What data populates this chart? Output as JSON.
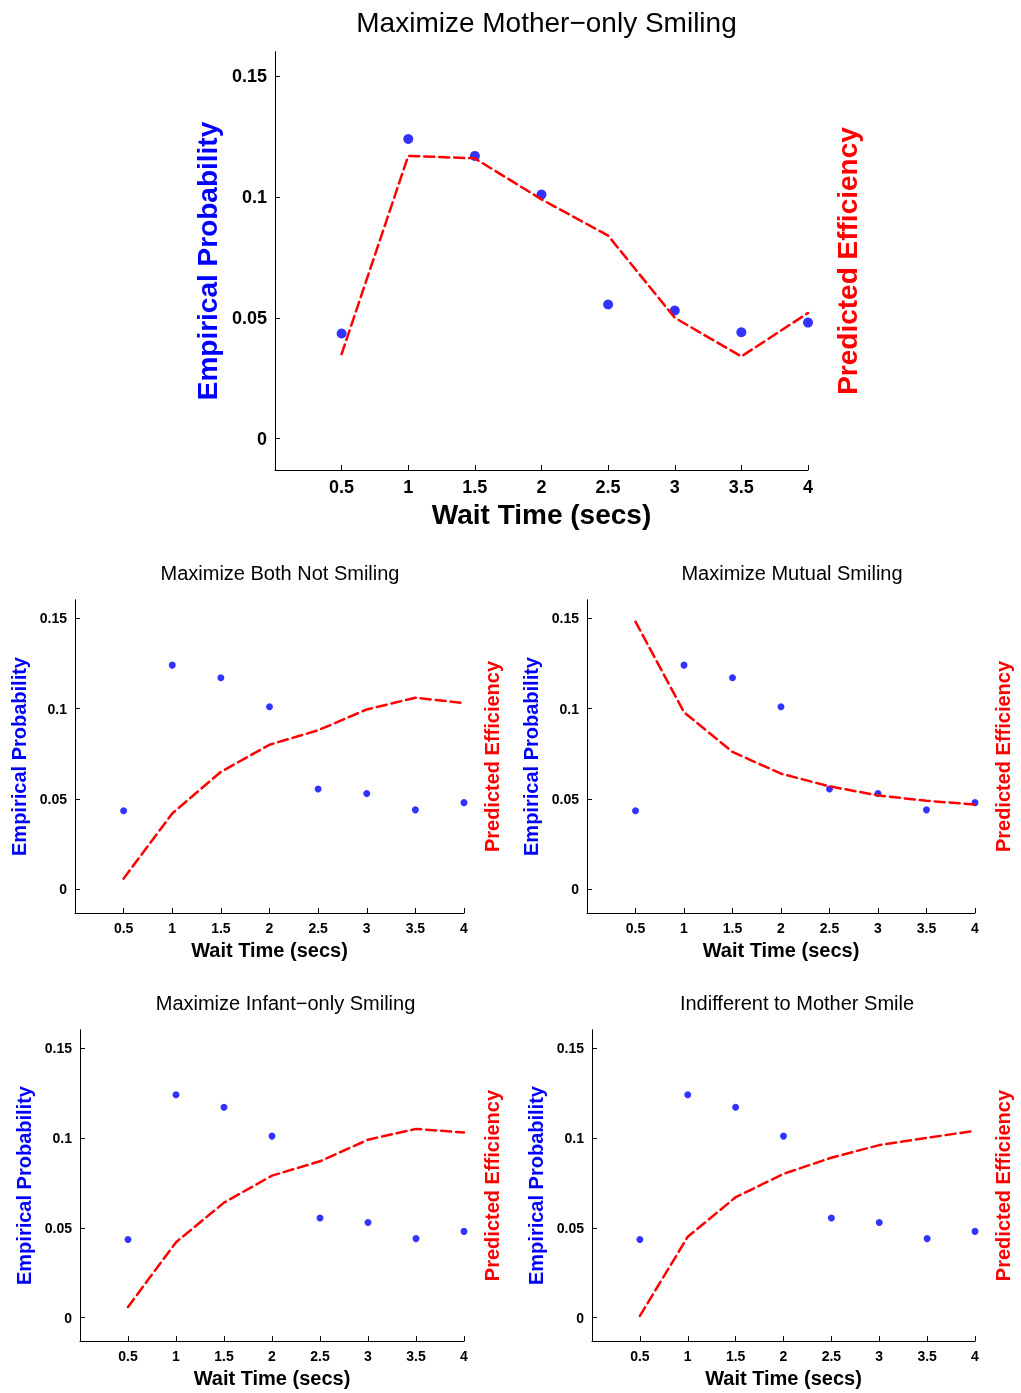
{
  "chart_data": [
    {
      "type": "scatter",
      "title": "Maximize Mother−only Smiling",
      "xlabel": "Wait Time (secs)",
      "ylabel": "Empirical Probability",
      "y2label": "Predicted Efficiency",
      "x": [
        0.5,
        1,
        1.5,
        2,
        2.5,
        3,
        3.5,
        4
      ],
      "xlim": [
        0,
        4
      ],
      "xticks": [
        0.5,
        1,
        1.5,
        2,
        2.5,
        3,
        3.5,
        4
      ],
      "ylim": [
        -0.013,
        0.16
      ],
      "yticks": [
        0,
        0.05,
        0.1,
        0.15
      ],
      "grid": false,
      "series": [
        {
          "type": "scatter",
          "color": "#0000ff",
          "marker": "circle",
          "values": [
            0.0435,
            0.124,
            0.117,
            0.101,
            0.0555,
            0.053,
            0.044,
            0.048
          ]
        },
        {
          "type": "line",
          "color": "#ff0000",
          "marker": "none",
          "line_style": "dashed",
          "values": [
            0.035,
            0.117,
            0.116,
            0.099,
            0.084,
            0.05,
            0.034,
            0.052
          ]
        }
      ]
    },
    {
      "type": "scatter",
      "title": "Maximize Both Not Smiling",
      "xlabel": "Wait Time (secs)",
      "ylabel": "Empirical Probability",
      "y2label": "Predicted Efficiency",
      "x": [
        0.5,
        1,
        1.5,
        2,
        2.5,
        3,
        3.5,
        4
      ],
      "xlim": [
        0,
        4
      ],
      "xticks": [
        0.5,
        1,
        1.5,
        2,
        2.5,
        3,
        3.5,
        4
      ],
      "ylim": [
        -0.013,
        0.16
      ],
      "yticks": [
        0,
        0.05,
        0.1,
        0.15
      ],
      "grid": false,
      "series": [
        {
          "type": "scatter",
          "color": "#0000ff",
          "marker": "circle",
          "values": [
            0.0435,
            0.124,
            0.117,
            0.101,
            0.0555,
            0.053,
            0.044,
            0.048
          ]
        },
        {
          "type": "line",
          "color": "#ff0000",
          "marker": "none",
          "line_style": "dashed",
          "values": [
            0.006,
            0.042,
            0.065,
            0.08,
            0.088,
            0.0995,
            0.106,
            0.103
          ]
        }
      ]
    },
    {
      "type": "scatter",
      "title": "Maximize Mutual Smiling",
      "xlabel": "Wait Time (secs)",
      "ylabel": "Empirical Probability",
      "y2label": "Predicted Efficiency",
      "x": [
        0.5,
        1,
        1.5,
        2,
        2.5,
        3,
        3.5,
        4
      ],
      "xlim": [
        0,
        4
      ],
      "xticks": [
        0.5,
        1,
        1.5,
        2,
        2.5,
        3,
        3.5,
        4
      ],
      "ylim": [
        -0.013,
        0.16
      ],
      "yticks": [
        0,
        0.05,
        0.1,
        0.15
      ],
      "grid": false,
      "series": [
        {
          "type": "scatter",
          "color": "#0000ff",
          "marker": "circle",
          "values": [
            0.0435,
            0.124,
            0.117,
            0.101,
            0.0555,
            0.053,
            0.044,
            0.048
          ]
        },
        {
          "type": "line",
          "color": "#ff0000",
          "marker": "none",
          "line_style": "dashed",
          "values": [
            0.148,
            0.098,
            0.076,
            0.064,
            0.057,
            0.052,
            0.049,
            0.047
          ]
        }
      ]
    },
    {
      "type": "scatter",
      "title": "Maximize Infant−only Smiling",
      "xlabel": "Wait Time (secs)",
      "ylabel": "Empirical Probability",
      "y2label": "Predicted Efficiency",
      "x": [
        0.5,
        1,
        1.5,
        2,
        2.5,
        3,
        3.5,
        4
      ],
      "xlim": [
        0,
        4
      ],
      "xticks": [
        0.5,
        1,
        1.5,
        2,
        2.5,
        3,
        3.5,
        4
      ],
      "ylim": [
        -0.013,
        0.16
      ],
      "yticks": [
        0,
        0.05,
        0.1,
        0.15
      ],
      "grid": false,
      "series": [
        {
          "type": "scatter",
          "color": "#0000ff",
          "marker": "circle",
          "values": [
            0.0435,
            0.124,
            0.117,
            0.101,
            0.0555,
            0.053,
            0.044,
            0.048
          ]
        },
        {
          "type": "line",
          "color": "#ff0000",
          "marker": "none",
          "line_style": "dashed",
          "values": [
            0.006,
            0.042,
            0.064,
            0.079,
            0.087,
            0.099,
            0.105,
            0.103
          ]
        }
      ]
    },
    {
      "type": "scatter",
      "title": "Indifferent to Mother Smile",
      "xlabel": "Wait Time (secs)",
      "ylabel": "Empirical Probability",
      "y2label": "Predicted Efficiency",
      "x": [
        0.5,
        1,
        1.5,
        2,
        2.5,
        3,
        3.5,
        4
      ],
      "xlim": [
        0,
        4
      ],
      "xticks": [
        0.5,
        1,
        1.5,
        2,
        2.5,
        3,
        3.5,
        4
      ],
      "ylim": [
        -0.013,
        0.16
      ],
      "yticks": [
        0,
        0.05,
        0.1,
        0.15
      ],
      "grid": false,
      "series": [
        {
          "type": "scatter",
          "color": "#0000ff",
          "marker": "circle",
          "values": [
            0.0435,
            0.124,
            0.117,
            0.101,
            0.0555,
            0.053,
            0.044,
            0.048
          ]
        },
        {
          "type": "line",
          "color": "#ff0000",
          "marker": "none",
          "line_style": "dashed",
          "values": [
            0.001,
            0.045,
            0.067,
            0.08,
            0.089,
            0.096,
            0.1,
            0.104
          ]
        }
      ]
    }
  ]
}
